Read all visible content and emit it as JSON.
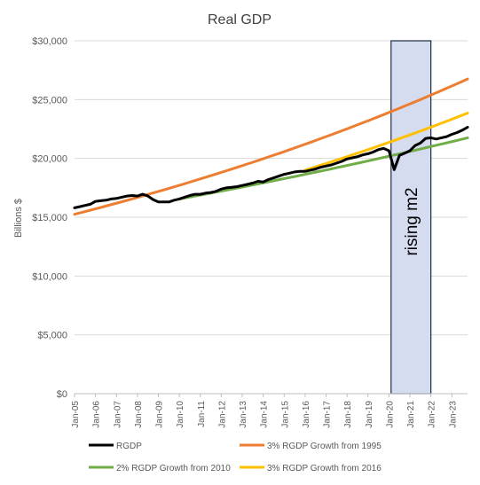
{
  "chart_data": {
    "type": "line",
    "title": "Real GDP",
    "xlabel": "",
    "ylabel": "Billions $",
    "ylim": [
      0,
      30000
    ],
    "yticks": [
      0,
      5000,
      10000,
      15000,
      20000,
      25000,
      30000
    ],
    "ytick_labels": [
      "$0",
      "$5,000",
      "$10,000",
      "$15,000",
      "$20,000",
      "$25,000",
      "$30,000"
    ],
    "xlim": [
      2005.0,
      2023.75
    ],
    "xtick_labels": [
      "Jan-05",
      "Jan-06",
      "Jan-07",
      "Jan-08",
      "Jan-09",
      "Jan-10",
      "Jan-11",
      "Jan-12",
      "Jan-13",
      "Jan-14",
      "Jan-15",
      "Jan-16",
      "Jan-17",
      "Jan-18",
      "Jan-19",
      "Jan-20",
      "Jan-21",
      "Jan-22",
      "Jan-23"
    ],
    "grid": "horizontal",
    "legend_position": "bottom",
    "series": [
      {
        "name": "RGDP",
        "color": "#000000",
        "x": [
          2005.0,
          2005.25,
          2005.5,
          2005.75,
          2006.0,
          2006.25,
          2006.5,
          2006.75,
          2007.0,
          2007.25,
          2007.5,
          2007.75,
          2008.0,
          2008.25,
          2008.5,
          2008.75,
          2009.0,
          2009.25,
          2009.5,
          2009.75,
          2010.0,
          2010.25,
          2010.5,
          2010.75,
          2011.0,
          2011.25,
          2011.5,
          2011.75,
          2012.0,
          2012.25,
          2012.5,
          2012.75,
          2013.0,
          2013.25,
          2013.5,
          2013.75,
          2014.0,
          2014.25,
          2014.5,
          2014.75,
          2015.0,
          2015.25,
          2015.5,
          2015.75,
          2016.0,
          2016.25,
          2016.5,
          2016.75,
          2017.0,
          2017.25,
          2017.5,
          2017.75,
          2018.0,
          2018.25,
          2018.5,
          2018.75,
          2019.0,
          2019.25,
          2019.5,
          2019.75,
          2020.0,
          2020.25,
          2020.5,
          2020.75,
          2021.0,
          2021.25,
          2021.5,
          2021.75,
          2022.0,
          2022.25,
          2022.5,
          2022.75,
          2023.0,
          2023.25,
          2023.5,
          2023.75
        ],
        "values": [
          15800,
          15900,
          16000,
          16100,
          16350,
          16400,
          16450,
          16550,
          16600,
          16700,
          16800,
          16850,
          16800,
          16950,
          16800,
          16500,
          16300,
          16300,
          16300,
          16450,
          16550,
          16700,
          16850,
          16950,
          16950,
          17050,
          17100,
          17200,
          17400,
          17500,
          17550,
          17600,
          17700,
          17800,
          17900,
          18050,
          18000,
          18200,
          18350,
          18500,
          18650,
          18750,
          18850,
          18900,
          18900,
          19000,
          19100,
          19250,
          19350,
          19450,
          19600,
          19750,
          19950,
          20050,
          20150,
          20300,
          20400,
          20550,
          20750,
          20850,
          20650,
          19050,
          20250,
          20450,
          20650,
          21100,
          21300,
          21700,
          21750,
          21650,
          21750,
          21850,
          22050,
          22200,
          22400,
          22650
        ]
      },
      {
        "name": "3% RGDP Growth from 1995",
        "color": "#ED7D31",
        "x": [
          2005.0,
          2023.75
        ],
        "values": [
          15250,
          26750
        ],
        "growth": "exponential"
      },
      {
        "name": "2% RGDP Growth from 2010",
        "color": "#70AD47",
        "x": [
          2010.0,
          2023.75
        ],
        "values": [
          16550,
          21750
        ],
        "growth": "exponential"
      },
      {
        "name": "3% RGDP Growth from 2016",
        "color": "#FFC000",
        "x": [
          2016.0,
          2023.75
        ],
        "values": [
          19000,
          23850
        ],
        "growth": "exponential"
      }
    ],
    "annotations": [
      {
        "type": "shaded-region",
        "label": "rising m2",
        "x_range": [
          2020.1,
          2022.0
        ],
        "fill": "#D5DCF0",
        "stroke": "#1F2A44"
      }
    ]
  }
}
